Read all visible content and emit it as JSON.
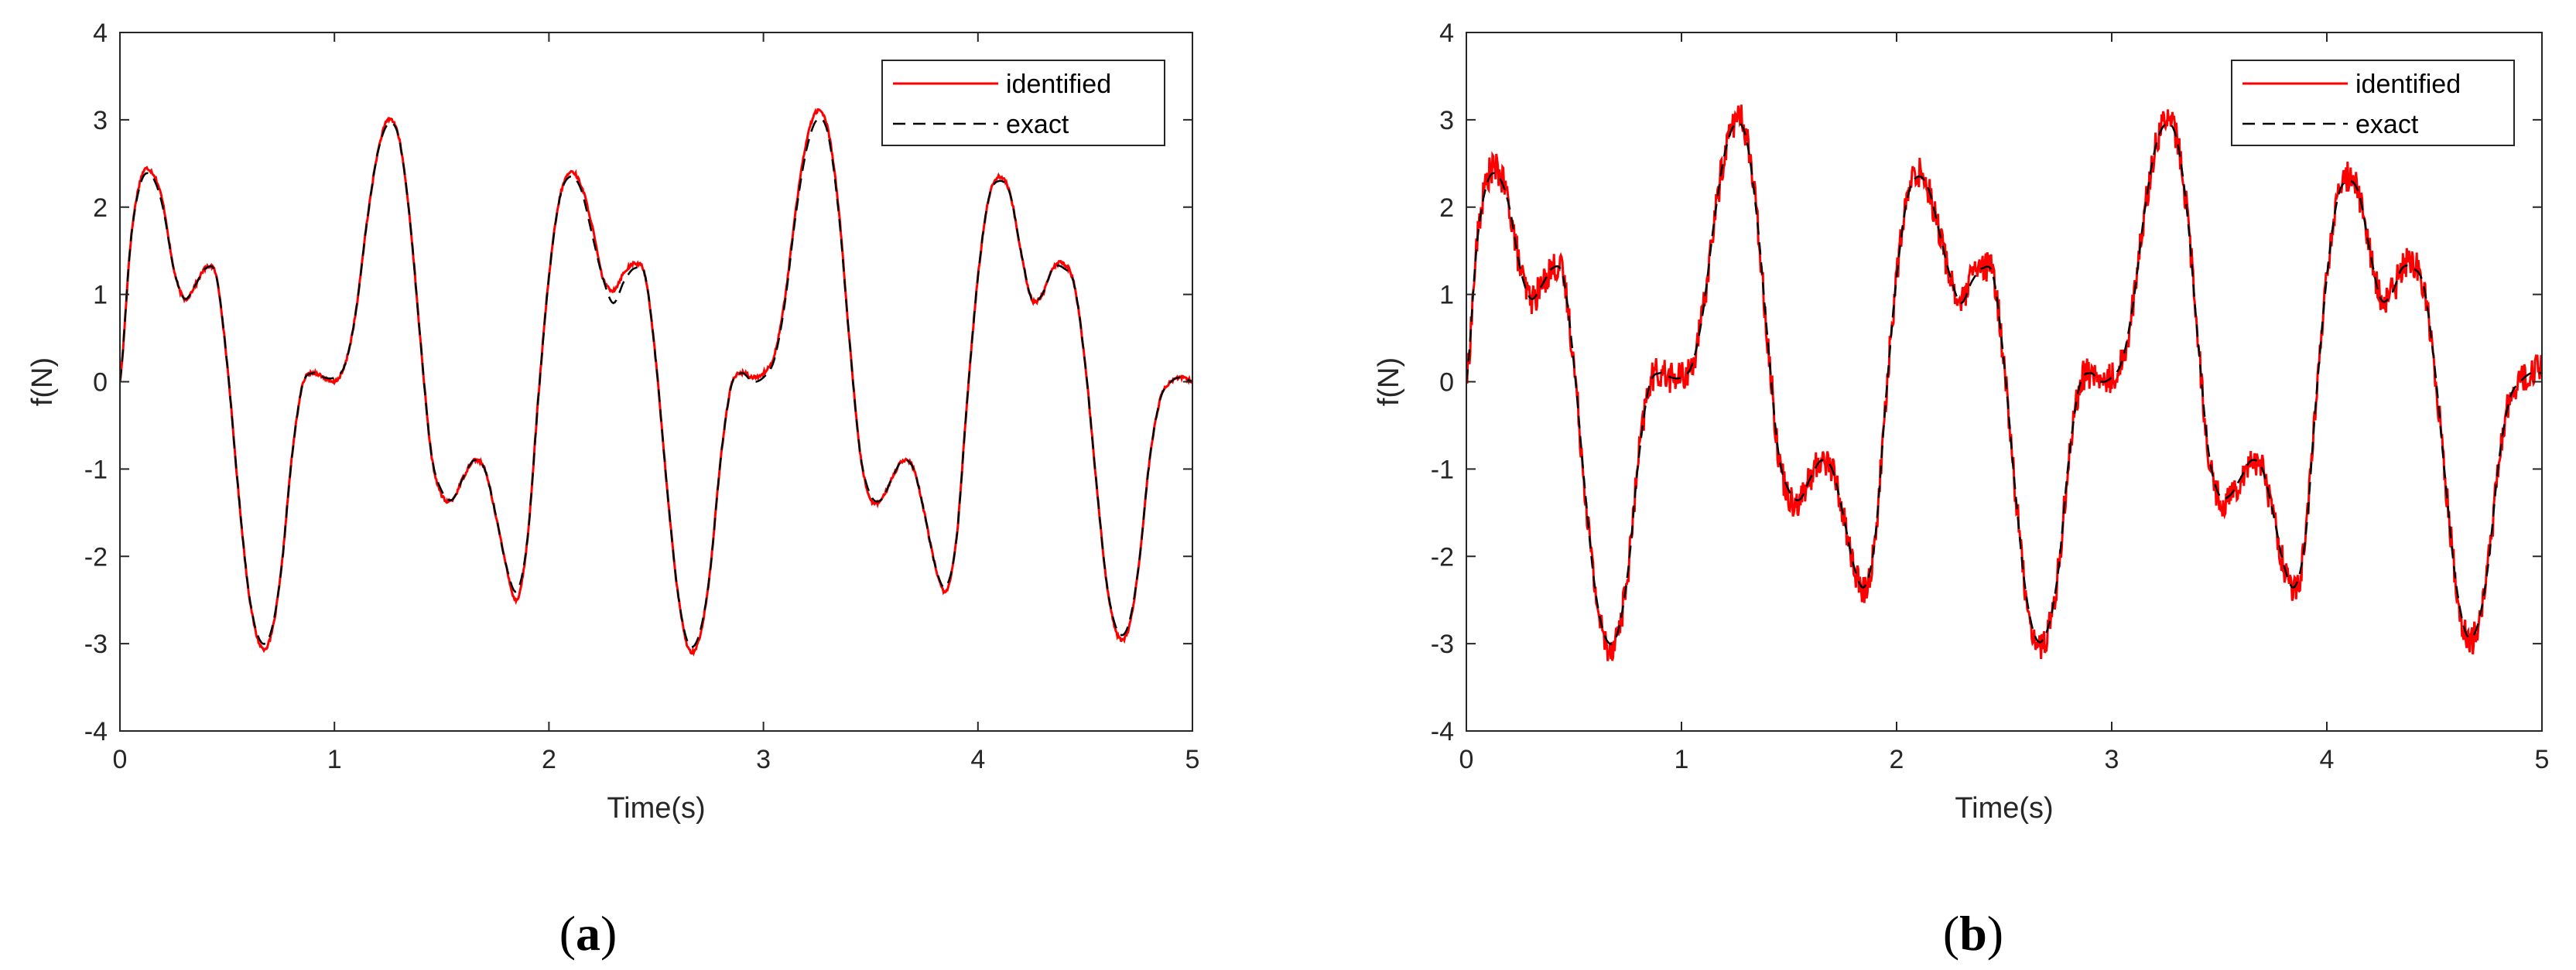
{
  "colors": {
    "identified": "#ff0000",
    "exact": "#000000",
    "axis": "#262626"
  },
  "chart_data": [
    {
      "type": "line",
      "panel_caption_letter": "a",
      "xlabel": "Time(s)",
      "ylabel": "f(N)",
      "xlim": [
        0,
        5
      ],
      "ylim": [
        -4,
        4
      ],
      "xticks": [
        0,
        1,
        2,
        3,
        4,
        5
      ],
      "yticks": [
        4,
        3,
        2,
        1,
        0,
        -1,
        -2,
        -3,
        -4
      ],
      "grid": false,
      "legend_position": "top-right",
      "series": [
        {
          "name": "identified",
          "style": "solid",
          "color": "#ff0000",
          "noise": 0.02
        },
        {
          "name": "exact",
          "style": "dashed",
          "color": "#000000",
          "noise": 0
        }
      ],
      "x": [
        0,
        0.05,
        0.1,
        0.15,
        0.2,
        0.25,
        0.3,
        0.35,
        0.4,
        0.45,
        0.5,
        0.55,
        0.6,
        0.65,
        0.7,
        0.75,
        0.8,
        0.85,
        0.9,
        0.95,
        1.0,
        1.05,
        1.1,
        1.15,
        1.2,
        1.25,
        1.3,
        1.35,
        1.4,
        1.45,
        1.5,
        1.55,
        1.6,
        1.65,
        1.7,
        1.75,
        1.8,
        1.85,
        1.9,
        1.95,
        2.0,
        2.05,
        2.1,
        2.15,
        2.2,
        2.25,
        2.3,
        2.35,
        2.4,
        2.45,
        2.5,
        2.55,
        2.6,
        2.65,
        2.7,
        2.75,
        2.8,
        2.85,
        2.9,
        2.95,
        3.0,
        3.05,
        3.1,
        3.15,
        3.2,
        3.25,
        3.3,
        3.35,
        3.4,
        3.45,
        3.5,
        3.55,
        3.6,
        3.65,
        3.7,
        3.75,
        3.8,
        3.85,
        3.9,
        3.95,
        4.0,
        4.05,
        4.1,
        4.15,
        4.2,
        4.25,
        4.3,
        4.35,
        4.4,
        4.45,
        4.5,
        4.55,
        4.6,
        4.65,
        4.7,
        4.75,
        4.8,
        4.85,
        4.9,
        4.95,
        5.0
      ],
      "y_exact": [
        0.0,
        1.6,
        2.3,
        2.35,
        2.0,
        1.3,
        0.95,
        1.1,
        1.3,
        1.2,
        0.2,
        -1.2,
        -2.4,
        -2.95,
        -2.9,
        -2.2,
        -0.9,
        -0.05,
        0.1,
        0.05,
        0.05,
        0.2,
        0.8,
        1.8,
        2.6,
        2.95,
        2.8,
        1.9,
        0.5,
        -0.8,
        -1.25,
        -1.35,
        -1.1,
        -0.9,
        -1.0,
        -1.5,
        -2.1,
        -2.4,
        -1.8,
        -0.2,
        1.2,
        2.1,
        2.35,
        2.2,
        1.7,
        1.2,
        0.9,
        1.15,
        1.3,
        1.2,
        0.2,
        -1.2,
        -2.4,
        -3.0,
        -2.9,
        -2.2,
        -0.9,
        -0.05,
        0.1,
        0.0,
        0.05,
        0.25,
        0.9,
        1.9,
        2.65,
        3.0,
        2.85,
        1.95,
        0.5,
        -0.8,
        -1.3,
        -1.35,
        -1.1,
        -0.9,
        -1.0,
        -1.5,
        -2.1,
        -2.35,
        -1.8,
        -0.2,
        1.2,
        2.1,
        2.3,
        2.15,
        1.5,
        0.95,
        1.0,
        1.3,
        1.3,
        1.1,
        0.2,
        -1.1,
        -2.3,
        -2.85,
        -2.8,
        -2.1,
        -0.9,
        -0.2,
        0.0,
        0.05,
        0.0
      ],
      "y_identified": [
        0.0,
        1.6,
        2.35,
        2.4,
        2.05,
        1.3,
        0.95,
        1.1,
        1.3,
        1.2,
        0.2,
        -1.2,
        -2.4,
        -3.0,
        -2.95,
        -2.2,
        -0.9,
        -0.05,
        0.1,
        0.05,
        0.0,
        0.2,
        0.8,
        1.8,
        2.6,
        3.0,
        2.8,
        1.9,
        0.5,
        -0.8,
        -1.3,
        -1.35,
        -1.1,
        -0.9,
        -1.0,
        -1.5,
        -2.1,
        -2.5,
        -1.8,
        -0.2,
        1.2,
        2.1,
        2.4,
        2.25,
        1.8,
        1.2,
        1.05,
        1.25,
        1.35,
        1.2,
        0.2,
        -1.2,
        -2.4,
        -3.05,
        -2.95,
        -2.2,
        -0.9,
        -0.05,
        0.1,
        0.05,
        0.1,
        0.3,
        0.95,
        1.95,
        2.75,
        3.1,
        2.9,
        2.0,
        0.5,
        -0.8,
        -1.35,
        -1.35,
        -1.1,
        -0.9,
        -1.0,
        -1.5,
        -2.1,
        -2.4,
        -1.8,
        -0.2,
        1.2,
        2.1,
        2.35,
        2.15,
        1.5,
        0.95,
        1.0,
        1.3,
        1.35,
        1.1,
        0.2,
        -1.1,
        -2.3,
        -2.9,
        -2.85,
        -2.1,
        -0.9,
        -0.2,
        0.0,
        0.05,
        0.0
      ]
    },
    {
      "type": "line",
      "panel_caption_letter": "b",
      "xlabel": "Time(s)",
      "ylabel": "f(N)",
      "xlim": [
        0,
        5
      ],
      "ylim": [
        -4,
        4
      ],
      "xticks": [
        0,
        1,
        2,
        3,
        4,
        5
      ],
      "yticks": [
        4,
        3,
        2,
        1,
        0,
        -1,
        -2,
        -3,
        -4
      ],
      "grid": false,
      "legend_position": "top-right",
      "series": [
        {
          "name": "identified",
          "style": "solid",
          "color": "#ff0000",
          "noise": 0.18
        },
        {
          "name": "exact",
          "style": "dashed",
          "color": "#000000",
          "noise": 0
        }
      ],
      "x": [
        0,
        0.05,
        0.1,
        0.15,
        0.2,
        0.25,
        0.3,
        0.35,
        0.4,
        0.45,
        0.5,
        0.55,
        0.6,
        0.65,
        0.7,
        0.75,
        0.8,
        0.85,
        0.9,
        0.95,
        1.0,
        1.05,
        1.1,
        1.15,
        1.2,
        1.25,
        1.3,
        1.35,
        1.4,
        1.45,
        1.5,
        1.55,
        1.6,
        1.65,
        1.7,
        1.75,
        1.8,
        1.85,
        1.9,
        1.95,
        2.0,
        2.05,
        2.1,
        2.15,
        2.2,
        2.25,
        2.3,
        2.35,
        2.4,
        2.45,
        2.5,
        2.55,
        2.6,
        2.65,
        2.7,
        2.75,
        2.8,
        2.85,
        2.9,
        2.95,
        3.0,
        3.05,
        3.1,
        3.15,
        3.2,
        3.25,
        3.3,
        3.35,
        3.4,
        3.45,
        3.5,
        3.55,
        3.6,
        3.65,
        3.7,
        3.75,
        3.8,
        3.85,
        3.9,
        3.95,
        4.0,
        4.05,
        4.1,
        4.15,
        4.2,
        4.25,
        4.3,
        4.35,
        4.4,
        4.45,
        4.5,
        4.55,
        4.6,
        4.65,
        4.7,
        4.75,
        4.8,
        4.85,
        4.9,
        4.95,
        5.0
      ],
      "y_exact": [
        0.0,
        1.6,
        2.3,
        2.35,
        2.0,
        1.3,
        0.95,
        1.1,
        1.3,
        1.2,
        0.2,
        -1.2,
        -2.4,
        -2.95,
        -2.9,
        -2.2,
        -0.9,
        -0.05,
        0.1,
        0.05,
        0.05,
        0.2,
        0.8,
        1.8,
        2.6,
        2.95,
        2.8,
        1.9,
        0.5,
        -0.8,
        -1.25,
        -1.35,
        -1.1,
        -0.9,
        -1.0,
        -1.5,
        -2.1,
        -2.35,
        -1.8,
        -0.2,
        1.2,
        2.1,
        2.35,
        2.2,
        1.7,
        1.2,
        0.9,
        1.15,
        1.3,
        1.2,
        0.2,
        -1.2,
        -2.4,
        -2.95,
        -2.85,
        -2.2,
        -0.9,
        -0.05,
        0.1,
        0.0,
        0.05,
        0.25,
        0.9,
        1.9,
        2.65,
        2.95,
        2.8,
        1.95,
        0.5,
        -0.8,
        -1.3,
        -1.3,
        -1.1,
        -0.9,
        -1.0,
        -1.5,
        -2.1,
        -2.35,
        -1.8,
        -0.2,
        1.2,
        2.1,
        2.3,
        2.15,
        1.5,
        0.95,
        1.0,
        1.3,
        1.3,
        1.1,
        0.2,
        -1.1,
        -2.3,
        -2.9,
        -2.8,
        -2.1,
        -0.9,
        -0.2,
        0.0,
        0.1,
        0.1
      ],
      "y_identified": [
        0.0,
        1.6,
        2.35,
        2.4,
        2.0,
        1.3,
        0.95,
        1.1,
        1.3,
        1.2,
        0.2,
        -1.2,
        -2.4,
        -3.0,
        -2.9,
        -2.2,
        -0.9,
        -0.05,
        0.1,
        0.05,
        0.05,
        0.2,
        0.8,
        1.8,
        2.6,
        3.0,
        2.85,
        1.9,
        0.5,
        -0.8,
        -1.3,
        -1.35,
        -1.1,
        -0.9,
        -1.0,
        -1.5,
        -2.1,
        -2.4,
        -1.8,
        -0.2,
        1.2,
        2.1,
        2.4,
        2.2,
        1.7,
        1.2,
        0.9,
        1.2,
        1.3,
        1.2,
        0.2,
        -1.2,
        -2.4,
        -3.0,
        -2.9,
        -2.2,
        -0.9,
        -0.05,
        0.1,
        0.0,
        0.05,
        0.25,
        0.9,
        1.9,
        2.65,
        3.0,
        2.8,
        1.95,
        0.5,
        -0.8,
        -1.35,
        -1.3,
        -1.1,
        -0.9,
        -1.0,
        -1.5,
        -2.1,
        -2.4,
        -1.8,
        -0.2,
        1.2,
        2.1,
        2.35,
        2.15,
        1.5,
        0.95,
        1.0,
        1.3,
        1.35,
        1.1,
        0.2,
        -1.1,
        -2.3,
        -2.95,
        -2.8,
        -2.1,
        -0.9,
        -0.2,
        0.0,
        0.1,
        0.15
      ]
    }
  ]
}
